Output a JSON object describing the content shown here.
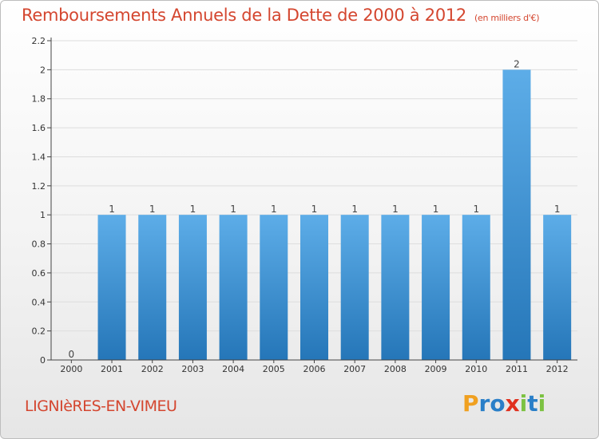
{
  "chart_data": {
    "type": "bar",
    "title": "Remboursements Annuels de la Dette de 2000 à 2012",
    "subtitle": "(en milliers d'€)",
    "categories": [
      "2000",
      "2001",
      "2002",
      "2003",
      "2004",
      "2005",
      "2006",
      "2007",
      "2008",
      "2009",
      "2010",
      "2011",
      "2012"
    ],
    "values": [
      0,
      1,
      1,
      1,
      1,
      1,
      1,
      1,
      1,
      1,
      1,
      2,
      1
    ],
    "data_labels": [
      "0",
      "1",
      "1",
      "1",
      "1",
      "1",
      "1",
      "1",
      "1",
      "1",
      "1",
      "2",
      "1"
    ],
    "ylim": [
      0,
      2.2
    ],
    "yticks": [
      0,
      0.2,
      0.4,
      0.6,
      0.8,
      1,
      1.2,
      1.4,
      1.6,
      1.8,
      2,
      2.2
    ],
    "ytick_labels": [
      "0",
      "0.2",
      "0.4",
      "0.6",
      "0.8",
      "1",
      "1.2",
      "1.4",
      "1.6",
      "1.8",
      "2",
      "2.2"
    ],
    "grid": true,
    "bar_color_top": "#5dade8",
    "bar_color_bottom": "#2576b8"
  },
  "commune": "LIGNIèRES-EN-VIMEU",
  "logo": {
    "letters": [
      "P",
      "r",
      "o",
      "x",
      "i",
      "t",
      "i"
    ],
    "colors": [
      "#f0a020",
      "#2a7fc8",
      "#2a7fc8",
      "#e0301e",
      "#7cc242",
      "#2a7fc8",
      "#7cc242"
    ]
  },
  "colors": {
    "title": "#d4462f",
    "axis": "#444444",
    "grid": "#dddddd"
  }
}
